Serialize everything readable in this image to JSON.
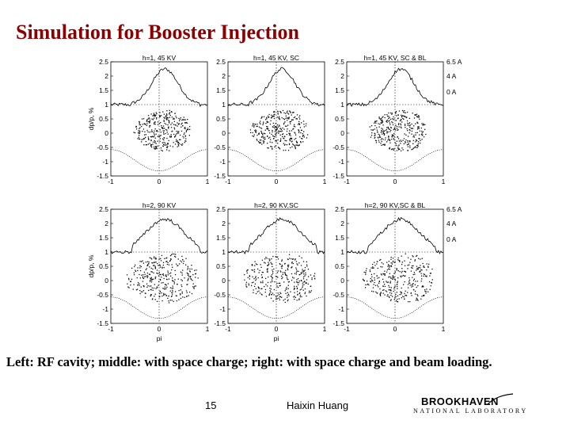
{
  "slide": {
    "title": "Simulation for Booster Injection",
    "caption": "Left: RF cavity; middle: with space charge; right: with space charge and beam loading.",
    "page_number": "15",
    "author": "Haixin Huang"
  },
  "logo": {
    "name": "BROOKHAVEN",
    "subtitle": "NATIONAL LABORATORY"
  },
  "figure": {
    "ylabel": "dp/p, %",
    "xlabel": "pi",
    "ytick_labels": [
      "2.5",
      "2",
      "1.5",
      "1",
      "0.5",
      "0",
      "-0.5",
      "-1",
      "-1.5"
    ],
    "xtick_labels": [
      "-1",
      "0",
      "1"
    ],
    "right_axis_labels": [
      "6.5 A",
      "4 A",
      "0 A"
    ],
    "panels": [
      {
        "title": "h=1, 45 KV"
      },
      {
        "title": "h=1, 45 KV, SC"
      },
      {
        "title": "h=1, 45 KV, SC & BL"
      },
      {
        "title": "h=2, 90 KV"
      },
      {
        "title": "h=2, 90 KV,SC"
      },
      {
        "title": "h=2, 90 KV,SC & BL"
      }
    ]
  },
  "colors": {
    "title": "#8b0000",
    "text": "#000000"
  }
}
